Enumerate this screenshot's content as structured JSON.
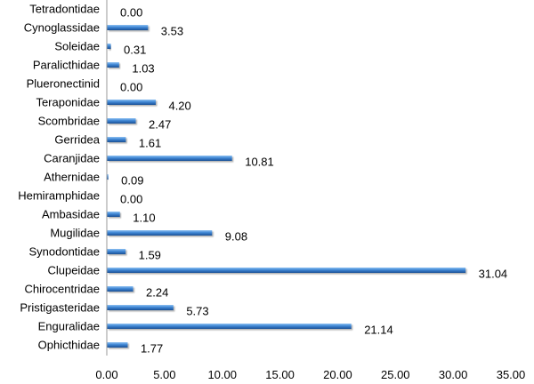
{
  "chart_data": {
    "type": "bar",
    "orientation": "horizontal",
    "title": "",
    "xlabel": "",
    "ylabel": "",
    "categories": [
      "Tetradontidae",
      "Cynoglassidae",
      "Soleidae",
      "Paralicthidae",
      "Plueronectinid",
      "Teraponidae",
      "Scombridae",
      "Gerridea",
      "Caranjidae",
      "Athernidae",
      "Hemiramphidae",
      "Ambasidae",
      "Mugilidae",
      "Synodontidae",
      "Clupeidae",
      "Chirocentridae",
      "Pristigasteridae",
      "Enguralidae",
      "Ophicthidae"
    ],
    "values": [
      0.0,
      3.53,
      0.31,
      1.03,
      0.0,
      4.2,
      2.47,
      1.61,
      10.81,
      0.09,
      0.0,
      1.1,
      9.08,
      1.59,
      31.04,
      2.24,
      5.73,
      21.14,
      1.77
    ],
    "value_labels": [
      "0.00",
      "3.53",
      "0.31",
      "1.03",
      "0.00",
      "4.20",
      "2.47",
      "1.61",
      "10.81",
      "0.09",
      "0.00",
      "1.10",
      "9.08",
      "1.59",
      "31.04",
      "2.24",
      "5.73",
      "21.14",
      "1.77"
    ],
    "xlim": [
      0,
      35
    ],
    "x_ticks": [
      "0.00",
      "5.00",
      "10.00",
      "15.00",
      "20.00",
      "25.00",
      "30.00",
      "35.00"
    ],
    "grid": false,
    "legend": "none",
    "bar_color": "#2e75c8"
  }
}
